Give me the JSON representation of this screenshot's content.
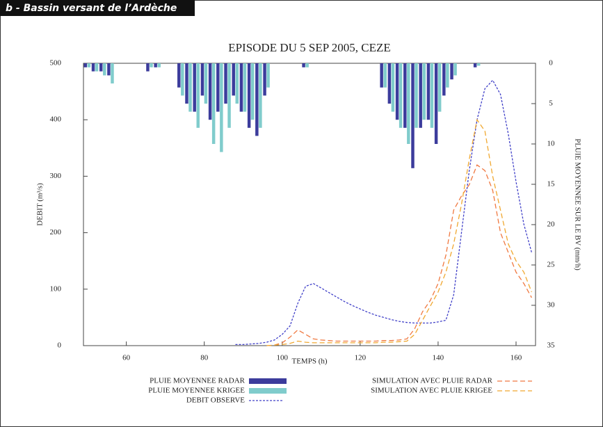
{
  "header": {
    "title": "b - Bassin versant de l’Ardèche"
  },
  "chart_data": {
    "type": "combo",
    "title": "EPISODE DU 5 SEP 2005, CEZE",
    "xlabel": "TEMPS (h)",
    "ylabel": "DEBIT (m³/s)",
    "y2label": "PLUIE MOYENNEE SUR LE BV (mm/h)",
    "x": [
      50,
      52,
      54,
      56,
      58,
      60,
      62,
      64,
      66,
      68,
      70,
      72,
      74,
      76,
      78,
      80,
      82,
      84,
      86,
      88,
      90,
      92,
      94,
      96,
      98,
      100,
      102,
      104,
      106,
      108,
      110,
      112,
      114,
      116,
      118,
      120,
      122,
      124,
      126,
      128,
      130,
      132,
      134,
      136,
      138,
      140,
      142,
      144,
      146,
      148,
      150,
      152,
      154,
      156,
      158,
      160,
      162,
      164
    ],
    "xlim": [
      49,
      165
    ],
    "xticks": [
      60,
      80,
      100,
      120,
      140,
      160
    ],
    "ylim": [
      0,
      500
    ],
    "yticks": [
      0,
      100,
      200,
      300,
      400,
      500
    ],
    "y2lim": [
      0,
      35
    ],
    "y2ticks": [
      0,
      5,
      10,
      15,
      20,
      25,
      30,
      35
    ],
    "y2_inverted": true,
    "series": [
      {
        "name": "PLUIE MOYENNEE RADAR",
        "type": "bar",
        "axis": "y2",
        "color": "#3c3c9c",
        "values": [
          0.5,
          1,
          1,
          1.5,
          0,
          0,
          0,
          0,
          1,
          0.5,
          0,
          0,
          3,
          5,
          6,
          4,
          7,
          6,
          5,
          4,
          6,
          8,
          9,
          4,
          0,
          0,
          0,
          0,
          0.5,
          0,
          0,
          0,
          0,
          0,
          0,
          0,
          0,
          0,
          3,
          5,
          7,
          8,
          13,
          8,
          7,
          10,
          4,
          2,
          0,
          0,
          0.5,
          0,
          0,
          0,
          0,
          0,
          0,
          0
        ]
      },
      {
        "name": "PLUIE MOYENNEE KRIGEE",
        "type": "bar",
        "axis": "y2",
        "color": "#80cccc",
        "values": [
          0.5,
          1,
          1.5,
          2.5,
          0,
          0,
          0,
          0,
          0.5,
          0.5,
          0,
          0,
          4,
          6,
          8,
          5,
          10,
          11,
          8,
          5,
          6,
          7,
          8,
          3,
          0,
          0,
          0,
          0,
          0.5,
          0,
          0,
          0,
          0,
          0,
          0,
          0,
          0,
          0,
          3,
          6,
          8,
          10,
          8,
          7,
          8,
          6,
          3,
          1.5,
          0,
          0,
          0.3,
          0,
          0,
          0,
          0,
          0,
          0,
          0
        ]
      },
      {
        "name": "DEBIT OBSERVE",
        "type": "line",
        "color": "#4040c8",
        "dash": "3 2",
        "values": [
          null,
          null,
          null,
          null,
          null,
          null,
          null,
          null,
          null,
          null,
          null,
          null,
          null,
          null,
          null,
          null,
          null,
          null,
          null,
          2,
          2,
          3,
          4,
          6,
          10,
          20,
          35,
          75,
          105,
          110,
          102,
          94,
          86,
          78,
          71,
          65,
          59,
          54,
          50,
          46,
          43,
          41,
          40,
          40,
          40,
          42,
          45,
          90,
          200,
          310,
          400,
          455,
          470,
          445,
          375,
          290,
          215,
          165
        ]
      },
      {
        "name": "SIMULATION AVEC PLUIE RADAR",
        "type": "line",
        "color": "#f07840",
        "dash": "7 4",
        "values": [
          null,
          null,
          null,
          null,
          null,
          null,
          null,
          null,
          null,
          null,
          null,
          null,
          null,
          null,
          null,
          null,
          null,
          null,
          null,
          null,
          null,
          null,
          null,
          0,
          1,
          5,
          15,
          28,
          20,
          12,
          10,
          9,
          8,
          8,
          8,
          8,
          8,
          8,
          9,
          9,
          10,
          12,
          30,
          60,
          80,
          110,
          160,
          240,
          265,
          285,
          320,
          310,
          275,
          200,
          165,
          130,
          110,
          85
        ]
      },
      {
        "name": "SIMULATION AVEC PLUIE KRIGEE",
        "type": "line",
        "color": "#f0a830",
        "dash": "7 4",
        "values": [
          null,
          null,
          null,
          null,
          null,
          null,
          null,
          null,
          null,
          null,
          null,
          null,
          null,
          null,
          null,
          null,
          null,
          null,
          null,
          null,
          null,
          null,
          null,
          0,
          1,
          2,
          4,
          8,
          6,
          5,
          5,
          5,
          5,
          5,
          5,
          5,
          5,
          5,
          6,
          6,
          7,
          8,
          20,
          45,
          70,
          95,
          130,
          180,
          250,
          330,
          400,
          380,
          300,
          240,
          180,
          150,
          130,
          95
        ]
      }
    ]
  }
}
